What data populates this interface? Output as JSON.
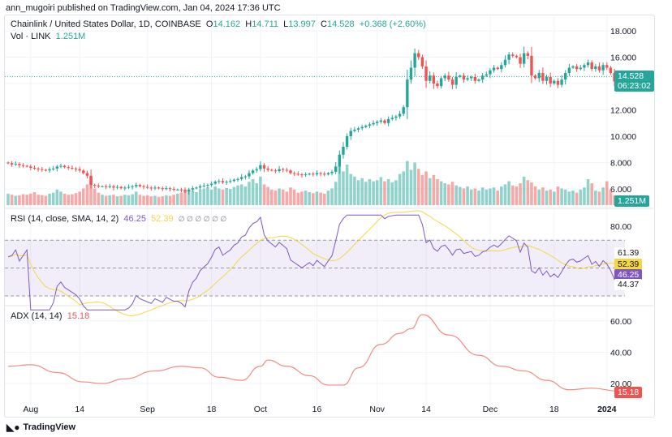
{
  "header": {
    "published": "ann_mugoiri published on TradingView.com, Jan 04, 2024 17:36 UTC"
  },
  "legend": {
    "symbol": "Chainlink / United States Dollar, 1D, COINBASE",
    "o_label": "O",
    "o": "14.162",
    "h_label": "H",
    "h": "14.711",
    "l_label": "L",
    "l": "13.997",
    "c_label": "C",
    "c": "14.528",
    "change": "+0.368 (+2.60%)",
    "vol_label": "Vol · LINK",
    "vol": "1.251M"
  },
  "rsi_legend": {
    "label": "RSI (14, close, SMA, 14, 2)",
    "rsi": "46.25",
    "sma": "52.39",
    "extra": "∅ ∅ ∅ ∅ ∅ ∅"
  },
  "adx_legend": {
    "label": "ADX (14, 14)",
    "value": "15.18"
  },
  "price_tag": {
    "price": "14.528",
    "countdown": "06:23:02"
  },
  "vol_tag": "1.251M",
  "rsi_tags": {
    "a": "61.39",
    "b": "52.39",
    "c": "46.25",
    "d": "44.37"
  },
  "adx_tag": "15.18",
  "footer": {
    "brand": "TradingView"
  },
  "colors": {
    "up": "#26a69a",
    "down": "#ef5350",
    "rsi": "#7e57c2",
    "rsi_sma": "#f5d742",
    "adx": "#f28b82"
  },
  "chart_data": [
    {
      "type": "candlestick",
      "title": "Chainlink / United States Dollar, 1D, COINBASE",
      "start_date": "2023-07-26",
      "end_date": "2024-01-04",
      "y_ticks": [
        "18.000",
        "16.000",
        "12.000",
        "10.000",
        "8.000",
        "6.000"
      ],
      "x_ticks": [
        {
          "label": "Aug",
          "date": "2023-08-01"
        },
        {
          "label": "14",
          "date": "2023-08-14"
        },
        {
          "label": "Sep",
          "date": "2023-09-01"
        },
        {
          "label": "18",
          "date": "2023-09-18"
        },
        {
          "label": "Oct",
          "date": "2023-10-01"
        },
        {
          "label": "16",
          "date": "2023-10-16"
        },
        {
          "label": "Nov",
          "date": "2023-11-01"
        },
        {
          "label": "14",
          "date": "2023-11-14"
        },
        {
          "label": "Dec",
          "date": "2023-12-01"
        },
        {
          "label": "18",
          "date": "2023-12-18"
        },
        {
          "label": "2024",
          "date": "2024-01-01"
        }
      ],
      "close": [
        7.95,
        7.85,
        7.9,
        7.8,
        7.75,
        7.7,
        7.6,
        7.55,
        7.5,
        7.45,
        7.4,
        7.5,
        7.55,
        7.7,
        7.75,
        7.65,
        7.6,
        7.55,
        7.5,
        7.4,
        7.2,
        7.0,
        6.3,
        6.25,
        6.2,
        6.2,
        6.15,
        6.2,
        6.1,
        6.15,
        6.05,
        6.1,
        6.15,
        6.2,
        6.3,
        6.2,
        6.15,
        6.1,
        6.05,
        6.1,
        6.05,
        6.0,
        6.05,
        6.0,
        5.95,
        5.95,
        5.9,
        5.8,
        5.95,
        6.05,
        6.1,
        6.2,
        6.25,
        6.3,
        6.4,
        6.55,
        6.6,
        6.5,
        6.55,
        6.6,
        6.7,
        6.75,
        6.9,
        6.95,
        7.2,
        7.4,
        7.5,
        7.8,
        7.55,
        7.45,
        7.4,
        7.35,
        7.5,
        7.45,
        7.4,
        7.2,
        7.15,
        7.1,
        7.05,
        7.1,
        7.15,
        7.1,
        7.2,
        7.15,
        7.1,
        7.2,
        7.3,
        7.7,
        8.6,
        9.2,
        10.0,
        10.4,
        10.5,
        10.6,
        10.7,
        10.8,
        10.9,
        11.0,
        11.1,
        11.2,
        11.0,
        11.3,
        11.4,
        11.5,
        11.7,
        12.2,
        14.3,
        15.2,
        16.3,
        16.0,
        15.3,
        14.2,
        14.6,
        14.0,
        13.8,
        14.4,
        14.6,
        14.3,
        13.9,
        14.5,
        14.6,
        14.3,
        14.4,
        14.5,
        14.2,
        14.3,
        14.6,
        14.7,
        15.0,
        15.2,
        15.1,
        15.4,
        15.8,
        16.2,
        16.1,
        16.0,
        15.5,
        16.3,
        16.1,
        14.6,
        14.4,
        14.8,
        14.2,
        14.5,
        14.0,
        14.2,
        13.9,
        14.3,
        14.8,
        15.2,
        15.3,
        15.1,
        15.2,
        15.4,
        15.6,
        15.1,
        15.3,
        15.0,
        15.4,
        15.2,
        14.8,
        14.16,
        14.528
      ],
      "last": {
        "open": 14.162,
        "high": 14.711,
        "low": 13.997,
        "close": 14.528
      }
    },
    {
      "type": "bar",
      "title": "Vol · LINK",
      "unit": "M",
      "values": [
        2.2,
        2.0,
        1.8,
        1.9,
        2.1,
        2.0,
        2.2,
        2.5,
        2.0,
        1.9,
        1.8,
        2.2,
        2.4,
        3.0,
        2.6,
        2.2,
        2.0,
        2.1,
        2.3,
        2.6,
        3.2,
        4.0,
        5.5,
        3.2,
        2.4,
        2.0,
        1.8,
        1.9,
        2.0,
        1.7,
        1.8,
        2.0,
        1.9,
        2.1,
        2.6,
        2.0,
        1.8,
        1.9,
        1.7,
        1.8,
        1.6,
        1.7,
        1.9,
        1.8,
        2.0,
        2.2,
        2.4,
        3.0,
        2.6,
        2.8,
        2.5,
        3.0,
        3.2,
        3.4,
        3.0,
        3.6,
        3.2,
        3.0,
        3.3,
        3.1,
        3.5,
        3.8,
        4.0,
        3.6,
        4.5,
        5.0,
        4.2,
        5.5,
        4.0,
        3.5,
        3.0,
        2.8,
        3.2,
        3.0,
        2.6,
        3.4,
        3.0,
        2.4,
        2.6,
        2.8,
        2.5,
        2.3,
        2.6,
        2.4,
        2.2,
        2.8,
        3.2,
        4.5,
        7.5,
        6.5,
        7.8,
        6.0,
        5.5,
        4.8,
        5.2,
        4.5,
        5.0,
        4.6,
        4.8,
        5.4,
        4.6,
        5.0,
        4.4,
        4.8,
        6.0,
        6.5,
        8.5,
        6.8,
        8.2,
        7.0,
        5.8,
        6.5,
        5.2,
        5.8,
        5.0,
        4.6,
        4.2,
        4.0,
        4.5,
        3.8,
        3.5,
        3.2,
        3.6,
        3.0,
        3.2,
        2.8,
        3.4,
        3.0,
        3.2,
        3.4,
        2.8,
        3.6,
        4.0,
        4.6,
        3.8,
        3.6,
        4.2,
        5.5,
        4.8,
        4.4,
        3.6,
        3.0,
        3.4,
        2.8,
        3.0,
        2.6,
        3.6,
        3.2,
        3.0,
        2.6,
        2.8,
        2.4,
        3.0,
        3.4,
        5.0,
        4.2,
        2.8,
        2.6,
        3.4,
        4.6,
        3.0,
        1.9,
        1.251
      ]
    },
    {
      "type": "line",
      "title": "RSI (14, close, SMA, 14, 2)",
      "y_ticks": [
        "80.00"
      ],
      "levels": [
        70,
        50,
        30
      ],
      "series": [
        {
          "name": "RSI",
          "last": 46.25
        },
        {
          "name": "SMA",
          "last": 52.39
        }
      ],
      "labels": [
        61.39,
        52.39,
        46.25,
        44.37
      ]
    },
    {
      "type": "line",
      "title": "ADX (14, 14)",
      "y_ticks": [
        "60.00",
        "40.00",
        "20.00"
      ],
      "series": [
        {
          "name": "ADX",
          "points": [
            [
              "2023-07-26",
              31
            ],
            [
              "2023-08-01",
              32
            ],
            [
              "2023-08-08",
              27
            ],
            [
              "2023-08-15",
              21
            ],
            [
              "2023-08-20",
              20
            ],
            [
              "2023-08-26",
              23
            ],
            [
              "2023-09-03",
              28
            ],
            [
              "2023-09-10",
              31
            ],
            [
              "2023-09-15",
              30
            ],
            [
              "2023-09-20",
              24
            ],
            [
              "2023-09-26",
              22
            ],
            [
              "2023-10-01",
              31
            ],
            [
              "2023-10-03",
              35
            ],
            [
              "2023-10-08",
              31
            ],
            [
              "2023-10-14",
              25
            ],
            [
              "2023-10-19",
              19
            ],
            [
              "2023-10-23",
              19
            ],
            [
              "2023-10-27",
              30
            ],
            [
              "2023-11-02",
              45
            ],
            [
              "2023-11-07",
              52
            ],
            [
              "2023-11-10",
              55
            ],
            [
              "2023-11-13",
              64
            ],
            [
              "2023-11-20",
              51
            ],
            [
              "2023-11-28",
              38
            ],
            [
              "2023-12-04",
              31
            ],
            [
              "2023-12-10",
              28
            ],
            [
              "2023-12-16",
              22
            ],
            [
              "2023-12-22",
              16
            ],
            [
              "2023-12-28",
              17
            ],
            [
              "2024-01-04",
              15.18
            ]
          ]
        }
      ]
    }
  ]
}
